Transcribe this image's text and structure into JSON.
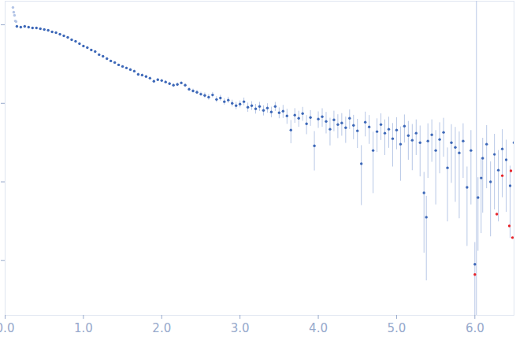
{
  "chart_data": {
    "type": "scatter",
    "log": "y",
    "xlim": [
      0,
      6.5
    ],
    "xticks": [
      0,
      1,
      2,
      3,
      4,
      5,
      6
    ],
    "ylim": [
      0.0002,
      2
    ],
    "yticks": [
      0.001,
      0.01,
      0.1,
      1
    ],
    "tick_labels": "x",
    "grid": false,
    "vertical_line_x": 6.02,
    "series": [
      {
        "color": "#b3c4e6",
        "marker": "circle",
        "x": [
          0.1,
          0.11,
          0.12,
          0.13,
          0.14
        ],
        "values": [
          1.66,
          1.45,
          1.32,
          1.12,
          1.1
        ]
      },
      {
        "color": "#3d68b8",
        "marker": "circle",
        "x": [
          0.15,
          0.2,
          0.25,
          0.3,
          0.35,
          0.4,
          0.45,
          0.5,
          0.55,
          0.6,
          0.65,
          0.7,
          0.75,
          0.8,
          0.85,
          0.9,
          0.95,
          1.0,
          1.05,
          1.1,
          1.15,
          1.2,
          1.25,
          1.3,
          1.35,
          1.4,
          1.45,
          1.5,
          1.55,
          1.6,
          1.65,
          1.7,
          1.75,
          1.8,
          1.85,
          1.9,
          1.95,
          2.0,
          2.05,
          2.1,
          2.15,
          2.2,
          2.25,
          2.3,
          2.35,
          2.4,
          2.45,
          2.5,
          2.55,
          2.6,
          2.65,
          2.7,
          2.75,
          2.8,
          2.85,
          2.9,
          2.95,
          3.0,
          3.05,
          3.1,
          3.15,
          3.2,
          3.25,
          3.3,
          3.35,
          3.4,
          3.45,
          3.5,
          3.55,
          3.6,
          3.65,
          3.7,
          3.75,
          3.8,
          3.85,
          3.9,
          3.95,
          4.0,
          4.05,
          4.1,
          4.15,
          4.2,
          4.25,
          4.3,
          4.35,
          4.4,
          4.45,
          4.5,
          4.55,
          4.6,
          4.65,
          4.7,
          4.75,
          4.8,
          4.85,
          4.9,
          4.95,
          5.0,
          5.05,
          5.1,
          5.15,
          5.2,
          5.25,
          5.3,
          5.35,
          5.38,
          5.4,
          5.45,
          5.5,
          5.55,
          5.6,
          5.65,
          5.7,
          5.75,
          5.8,
          5.85,
          5.9,
          5.95,
          6.0,
          6.04,
          6.08,
          6.1,
          6.15,
          6.2,
          6.25,
          6.3,
          6.35,
          6.4,
          6.45,
          6.5
        ],
        "values": [
          0.955,
          0.933,
          0.955,
          0.933,
          0.912,
          0.912,
          0.891,
          0.871,
          0.851,
          0.813,
          0.794,
          0.758,
          0.724,
          0.692,
          0.646,
          0.617,
          0.575,
          0.537,
          0.513,
          0.478,
          0.457,
          0.417,
          0.398,
          0.371,
          0.347,
          0.331,
          0.309,
          0.295,
          0.282,
          0.269,
          0.257,
          0.234,
          0.229,
          0.219,
          0.209,
          0.191,
          0.2,
          0.195,
          0.187,
          0.178,
          0.17,
          0.174,
          0.182,
          0.17,
          0.151,
          0.144,
          0.138,
          0.131,
          0.126,
          0.12,
          0.128,
          0.112,
          0.117,
          0.105,
          0.11,
          0.1,
          0.0933,
          0.0977,
          0.105,
          0.0891,
          0.0933,
          0.0851,
          0.0912,
          0.0813,
          0.0871,
          0.0776,
          0.0912,
          0.0758,
          0.0794,
          0.0692,
          0.0457,
          0.0708,
          0.0646,
          0.0741,
          0.055,
          0.0661,
          0.0288,
          0.0631,
          0.0676,
          0.0589,
          0.0468,
          0.0617,
          0.0537,
          0.0562,
          0.049,
          0.0646,
          0.0525,
          0.0447,
          0.017,
          0.0575,
          0.0501,
          0.0251,
          0.0437,
          0.0537,
          0.0417,
          0.0468,
          0.0355,
          0.0457,
          0.0302,
          0.0513,
          0.0389,
          0.0339,
          0.0417,
          0.0316,
          0.00724,
          0.00355,
          0.0331,
          0.0398,
          0.0251,
          0.0347,
          0.0427,
          0.0151,
          0.0316,
          0.0275,
          0.0234,
          0.0331,
          0.00851,
          0.0251,
          0.000891,
          0.00631,
          0.0112,
          0.02,
          0.0302,
          0.01,
          0.0224,
          0.0141,
          0.0263,
          0.0191,
          0.00891,
          0.0316
        ],
        "errors": [
          0.01,
          0.01,
          0.01,
          0.01,
          0.01,
          0.01,
          0.01,
          0.01,
          0.008,
          0.008,
          0.008,
          0.008,
          0.008,
          0.008,
          0.008,
          0.008,
          0.008,
          0.008,
          0.006,
          0.006,
          0.006,
          0.006,
          0.006,
          0.006,
          0.006,
          0.006,
          0.006,
          0.006,
          0.008,
          0.008,
          0.008,
          0.008,
          0.008,
          0.008,
          0.008,
          0.008,
          0.008,
          0.008,
          0.008,
          0.008,
          0.008,
          0.008,
          0.008,
          0.008,
          0.008,
          0.008,
          0.008,
          0.008,
          0.01,
          0.01,
          0.01,
          0.01,
          0.01,
          0.01,
          0.01,
          0.01,
          0.01,
          0.01,
          0.012,
          0.012,
          0.012,
          0.012,
          0.012,
          0.012,
          0.012,
          0.012,
          0.012,
          0.012,
          0.015,
          0.015,
          0.015,
          0.015,
          0.015,
          0.015,
          0.015,
          0.015,
          0.015,
          0.015,
          0.018,
          0.018,
          0.018,
          0.018,
          0.018,
          0.018,
          0.018,
          0.018,
          0.018,
          0.018,
          0.012,
          0.02,
          0.02,
          0.018,
          0.02,
          0.02,
          0.02,
          0.02,
          0.02,
          0.02,
          0.02,
          0.02,
          0.02,
          0.02,
          0.02,
          0.02,
          0.006,
          0.003,
          0.022,
          0.022,
          0.02,
          0.022,
          0.022,
          0.012,
          0.022,
          0.022,
          0.02,
          0.022,
          0.007,
          0.02,
          0.0008,
          0.005,
          0.009,
          0.016,
          0.022,
          0.008,
          0.018,
          0.011,
          0.02,
          0.015,
          0.007,
          0.022
        ]
      },
      {
        "color": "#e8242a",
        "marker": "circle",
        "x": [
          6.0,
          6.28,
          6.35,
          6.44,
          6.46,
          6.48
        ],
        "values": [
          0.000661,
          0.00389,
          0.012,
          0.00275,
          0.0138,
          0.00195
        ]
      }
    ]
  }
}
